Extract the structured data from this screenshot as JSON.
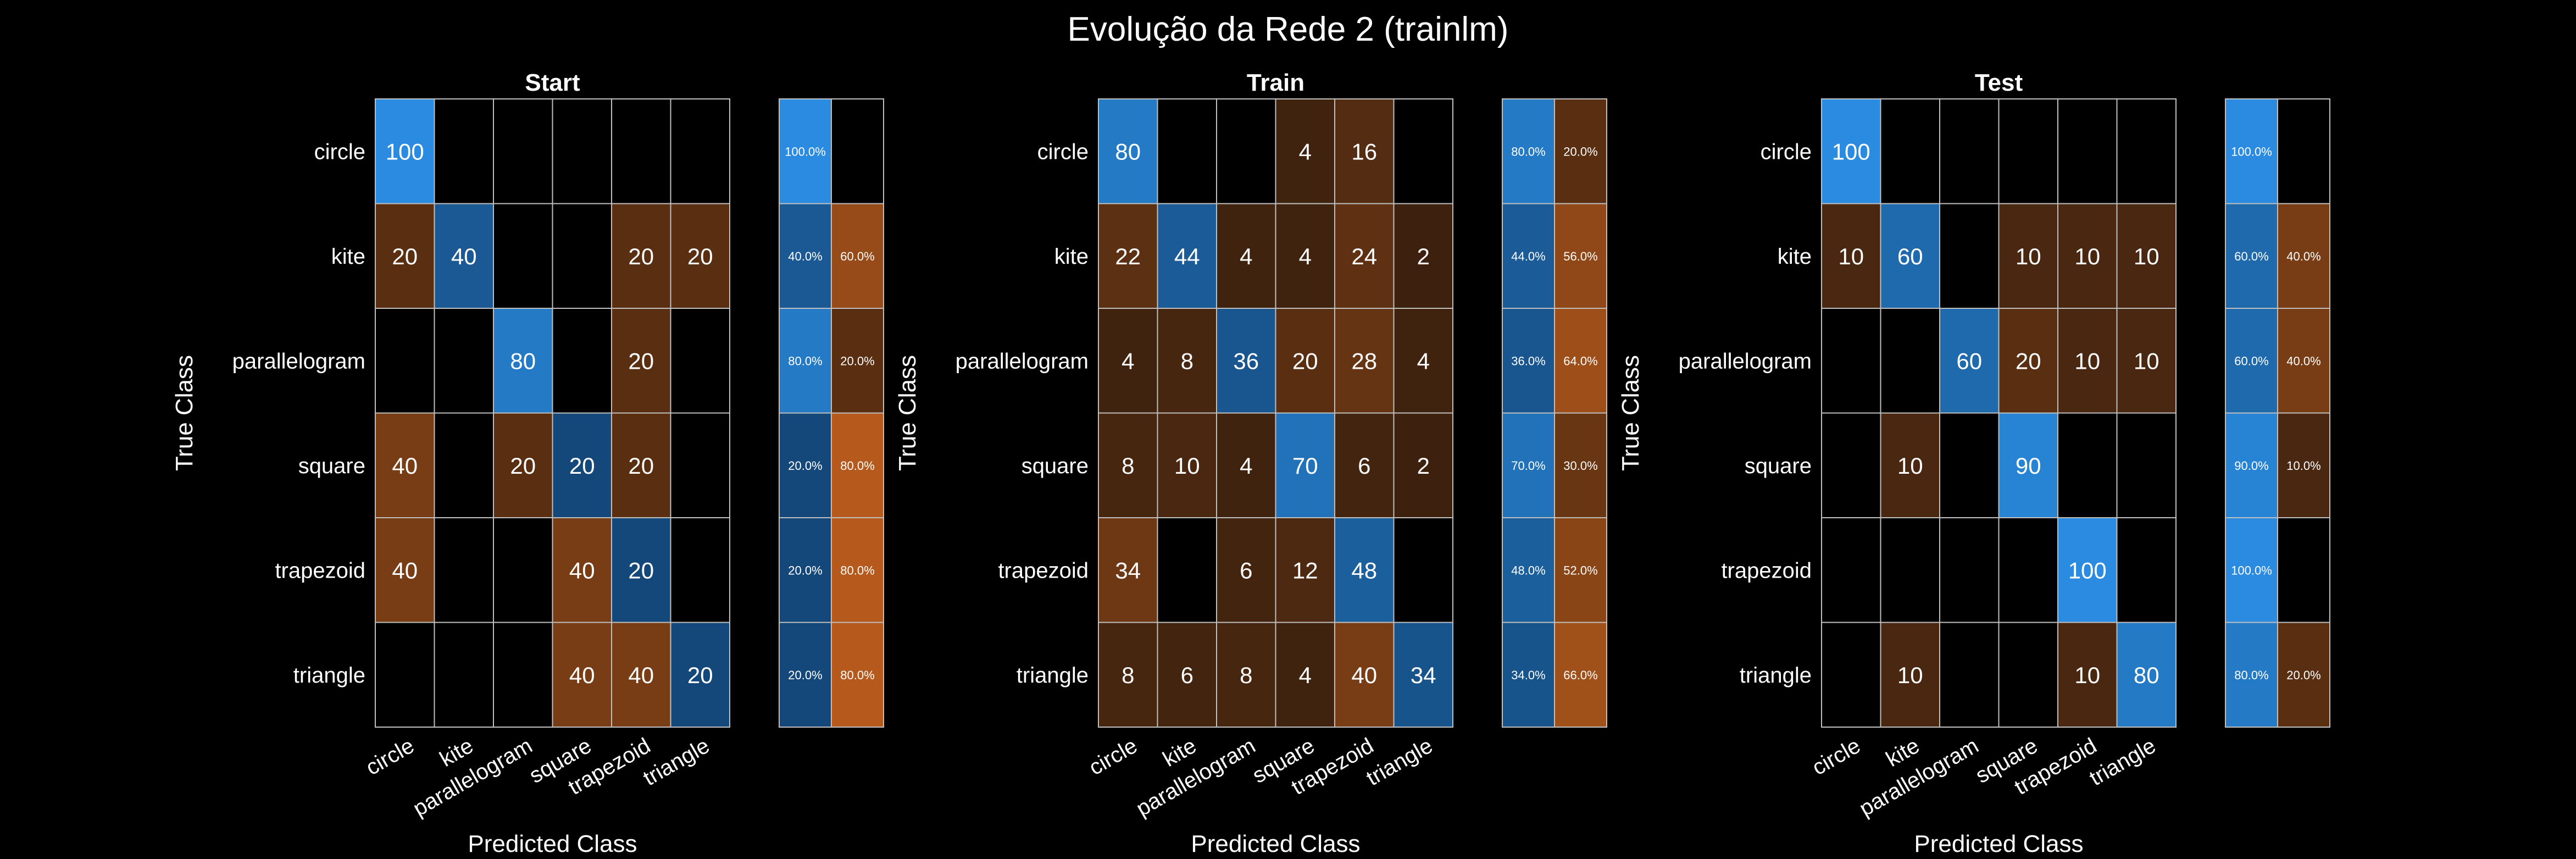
{
  "figure": {
    "title": "Evolução da Rede 2 (trainlm)",
    "colors": {
      "background": "#000000",
      "grid": "#bfbfbf",
      "text": "#ffffff",
      "diag_high": "#2a8be0",
      "diag_low": "#0f3760",
      "off_high": "#d4681f",
      "off_low": "#3a200e"
    }
  },
  "chart_data": [
    {
      "type": "heatmap",
      "title": "Start",
      "xlabel": "Predicted Class",
      "ylabel": "True Class",
      "classes": [
        "circle",
        "kite",
        "parallelogram",
        "square",
        "trapezoid",
        "triangle"
      ],
      "matrix": [
        [
          100,
          0,
          0,
          0,
          0,
          0
        ],
        [
          20,
          40,
          0,
          0,
          20,
          20
        ],
        [
          0,
          0,
          80,
          0,
          20,
          0
        ],
        [
          40,
          0,
          20,
          20,
          20,
          0
        ],
        [
          40,
          0,
          0,
          40,
          20,
          0
        ],
        [
          0,
          0,
          0,
          40,
          40,
          20
        ]
      ],
      "row_summary": [
        [
          "100.0%",
          ""
        ],
        [
          "40.0%",
          "60.0%"
        ],
        [
          "80.0%",
          "20.0%"
        ],
        [
          "20.0%",
          "80.0%"
        ],
        [
          "20.0%",
          "80.0%"
        ],
        [
          "20.0%",
          "80.0%"
        ]
      ]
    },
    {
      "type": "heatmap",
      "title": "Train",
      "xlabel": "Predicted Class",
      "ylabel": "True Class",
      "classes": [
        "circle",
        "kite",
        "parallelogram",
        "square",
        "trapezoid",
        "triangle"
      ],
      "matrix": [
        [
          80,
          0,
          0,
          4,
          16,
          0
        ],
        [
          22,
          44,
          4,
          4,
          24,
          2
        ],
        [
          4,
          8,
          36,
          20,
          28,
          4
        ],
        [
          8,
          10,
          4,
          70,
          6,
          2
        ],
        [
          34,
          0,
          6,
          12,
          48,
          0
        ],
        [
          8,
          6,
          8,
          4,
          40,
          34
        ]
      ],
      "row_summary": [
        [
          "80.0%",
          "20.0%"
        ],
        [
          "44.0%",
          "56.0%"
        ],
        [
          "36.0%",
          "64.0%"
        ],
        [
          "70.0%",
          "30.0%"
        ],
        [
          "48.0%",
          "52.0%"
        ],
        [
          "34.0%",
          "66.0%"
        ]
      ]
    },
    {
      "type": "heatmap",
      "title": "Test",
      "xlabel": "Predicted Class",
      "ylabel": "True Class",
      "classes": [
        "circle",
        "kite",
        "parallelogram",
        "square",
        "trapezoid",
        "triangle"
      ],
      "matrix": [
        [
          100,
          0,
          0,
          0,
          0,
          0
        ],
        [
          10,
          60,
          0,
          10,
          10,
          10
        ],
        [
          0,
          0,
          60,
          20,
          10,
          10
        ],
        [
          0,
          10,
          0,
          90,
          0,
          0
        ],
        [
          0,
          0,
          0,
          0,
          100,
          0
        ],
        [
          0,
          10,
          0,
          0,
          10,
          80
        ]
      ],
      "row_summary": [
        [
          "100.0%",
          ""
        ],
        [
          "60.0%",
          "40.0%"
        ],
        [
          "60.0%",
          "40.0%"
        ],
        [
          "90.0%",
          "10.0%"
        ],
        [
          "100.0%",
          ""
        ],
        [
          "80.0%",
          "20.0%"
        ]
      ]
    }
  ]
}
